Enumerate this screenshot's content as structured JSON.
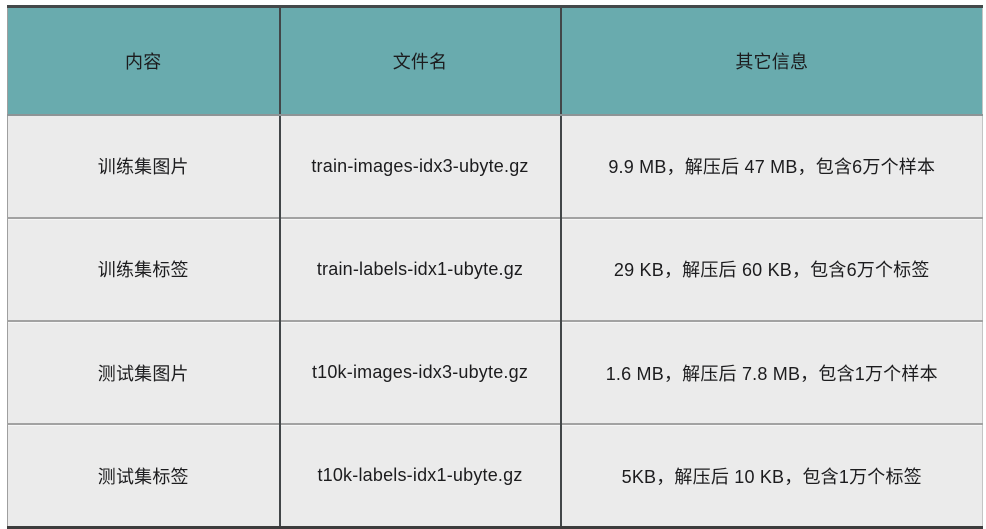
{
  "page": {
    "background": "#ffffff"
  },
  "table": {
    "header_bg": "#69abae",
    "row_bg": "#ebebeb",
    "text_color": "#1c1c1e",
    "columns": [
      {
        "key": "content",
        "label": "内容"
      },
      {
        "key": "filename",
        "label": "文件名"
      },
      {
        "key": "info",
        "label": "其它信息"
      }
    ],
    "rows": [
      {
        "content": "训练集图片",
        "filename": "train-images-idx3-ubyte.gz",
        "info": "9.9 MB，解压后 47 MB，包含6万个样本"
      },
      {
        "content": "训练集标签",
        "filename": "train-labels-idx1-ubyte.gz",
        "info": "29 KB，解压后 60 KB，包含6万个标签"
      },
      {
        "content": "测试集图片",
        "filename": "t10k-images-idx3-ubyte.gz",
        "info": "1.6 MB，解压后 7.8 MB，包含1万个样本"
      },
      {
        "content": "测试集标签",
        "filename": "t10k-labels-idx1-ubyte.gz",
        "info": "5KB，解压后 10 KB，包含1万个标签"
      }
    ]
  }
}
